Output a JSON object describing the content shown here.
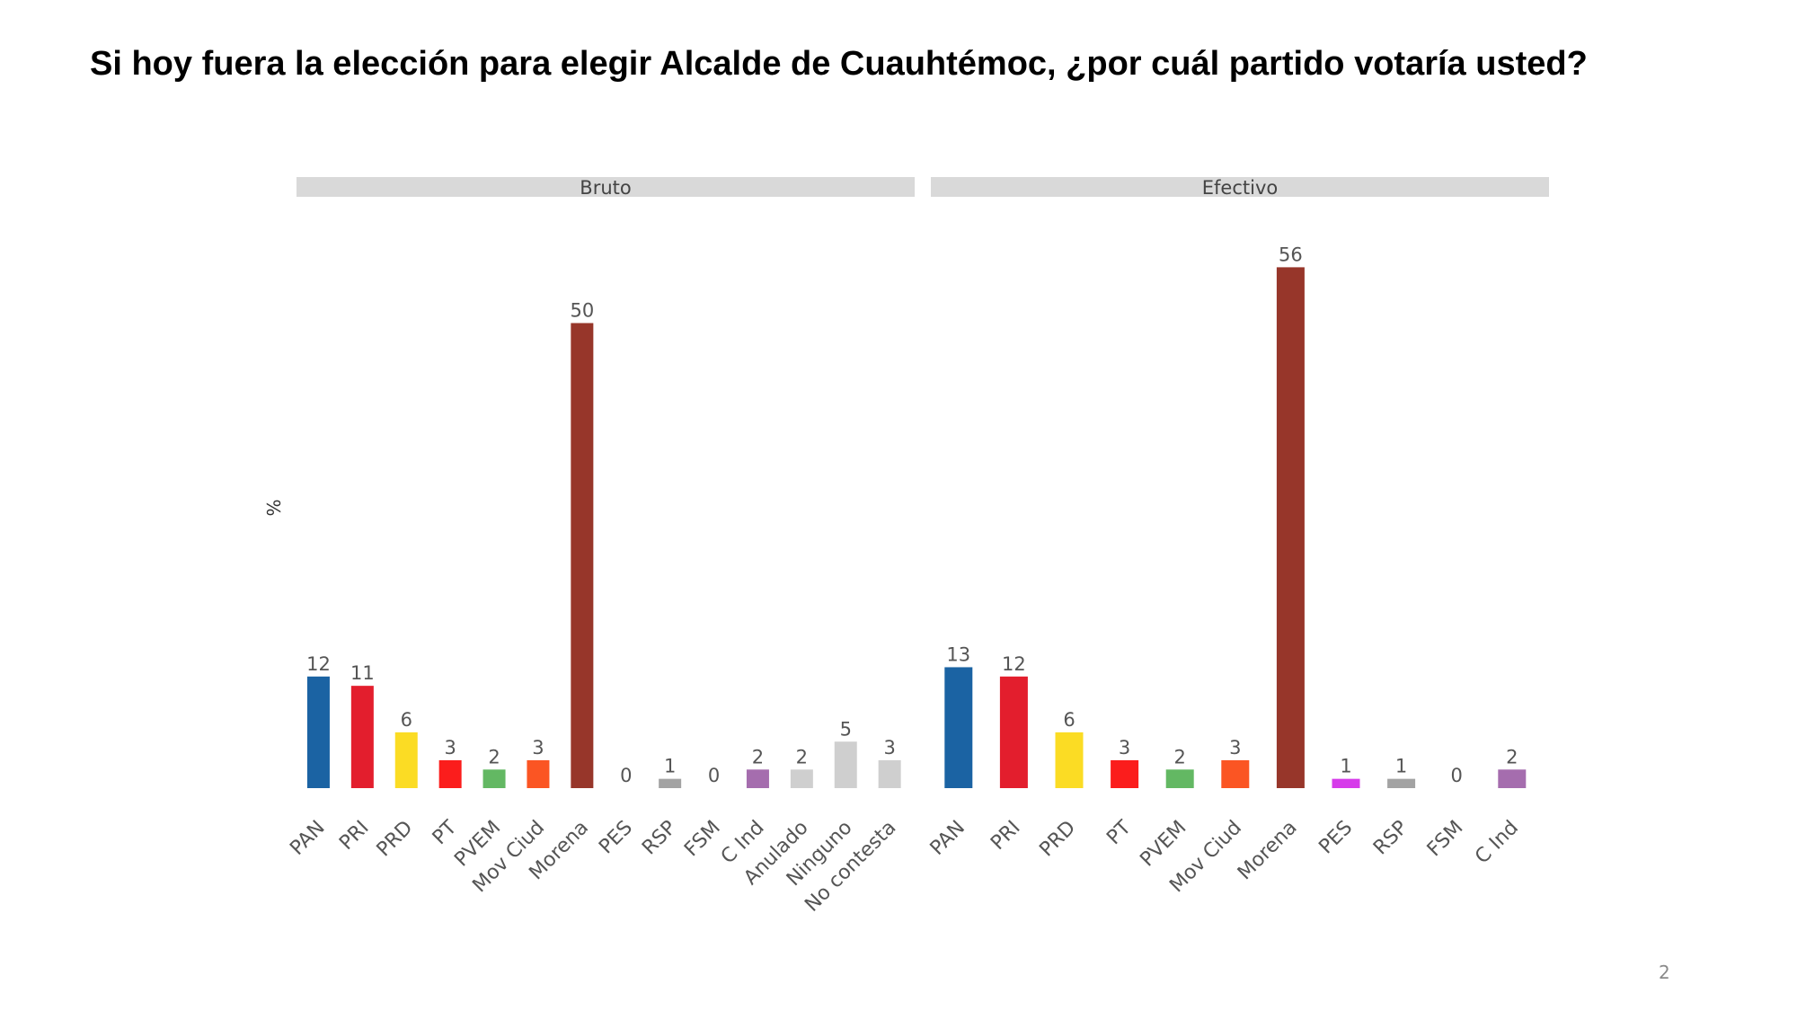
{
  "slide": {
    "title": "Si hoy fuera la elección para elegir Alcalde de Cuauhtémoc, ¿por cuál partido votaría usted?",
    "page_number": "2"
  },
  "party_colors": {
    "PAN": "#1b63a3",
    "PRI": "#e31e2d",
    "PRD": "#fbdc24",
    "PT": "#fb1d1c",
    "PVEM": "#63b863",
    "Mov Ciud": "#fb5523",
    "Morena": "#97362a",
    "PES": "#d63bea",
    "RSP": "#a3a3a3",
    "FSM": "#7a7a7a",
    "C Ind": "#a56dae",
    "Anulado": "#cfcfcf",
    "Ninguno": "#cfcfcf",
    "No contesta": "#cfcfcf"
  },
  "chart_data": {
    "type": "bar",
    "ylabel": "%",
    "ylim": [
      0,
      60
    ],
    "grid": false,
    "legend": "none",
    "panels": [
      {
        "title": "Bruto",
        "categories": [
          "PAN",
          "PRI",
          "PRD",
          "PT",
          "PVEM",
          "Mov Ciud",
          "Morena",
          "PES",
          "RSP",
          "FSM",
          "C Ind",
          "Anulado",
          "Ninguno",
          "No contesta"
        ],
        "values": [
          12,
          11,
          6,
          3,
          2,
          3,
          50,
          0,
          1,
          0,
          2,
          2,
          5,
          3
        ]
      },
      {
        "title": "Efectivo",
        "categories": [
          "PAN",
          "PRI",
          "PRD",
          "PT",
          "PVEM",
          "Mov Ciud",
          "Morena",
          "PES",
          "RSP",
          "FSM",
          "C Ind"
        ],
        "values": [
          13,
          12,
          6,
          3,
          2,
          3,
          56,
          1,
          1,
          0,
          2
        ]
      }
    ]
  }
}
